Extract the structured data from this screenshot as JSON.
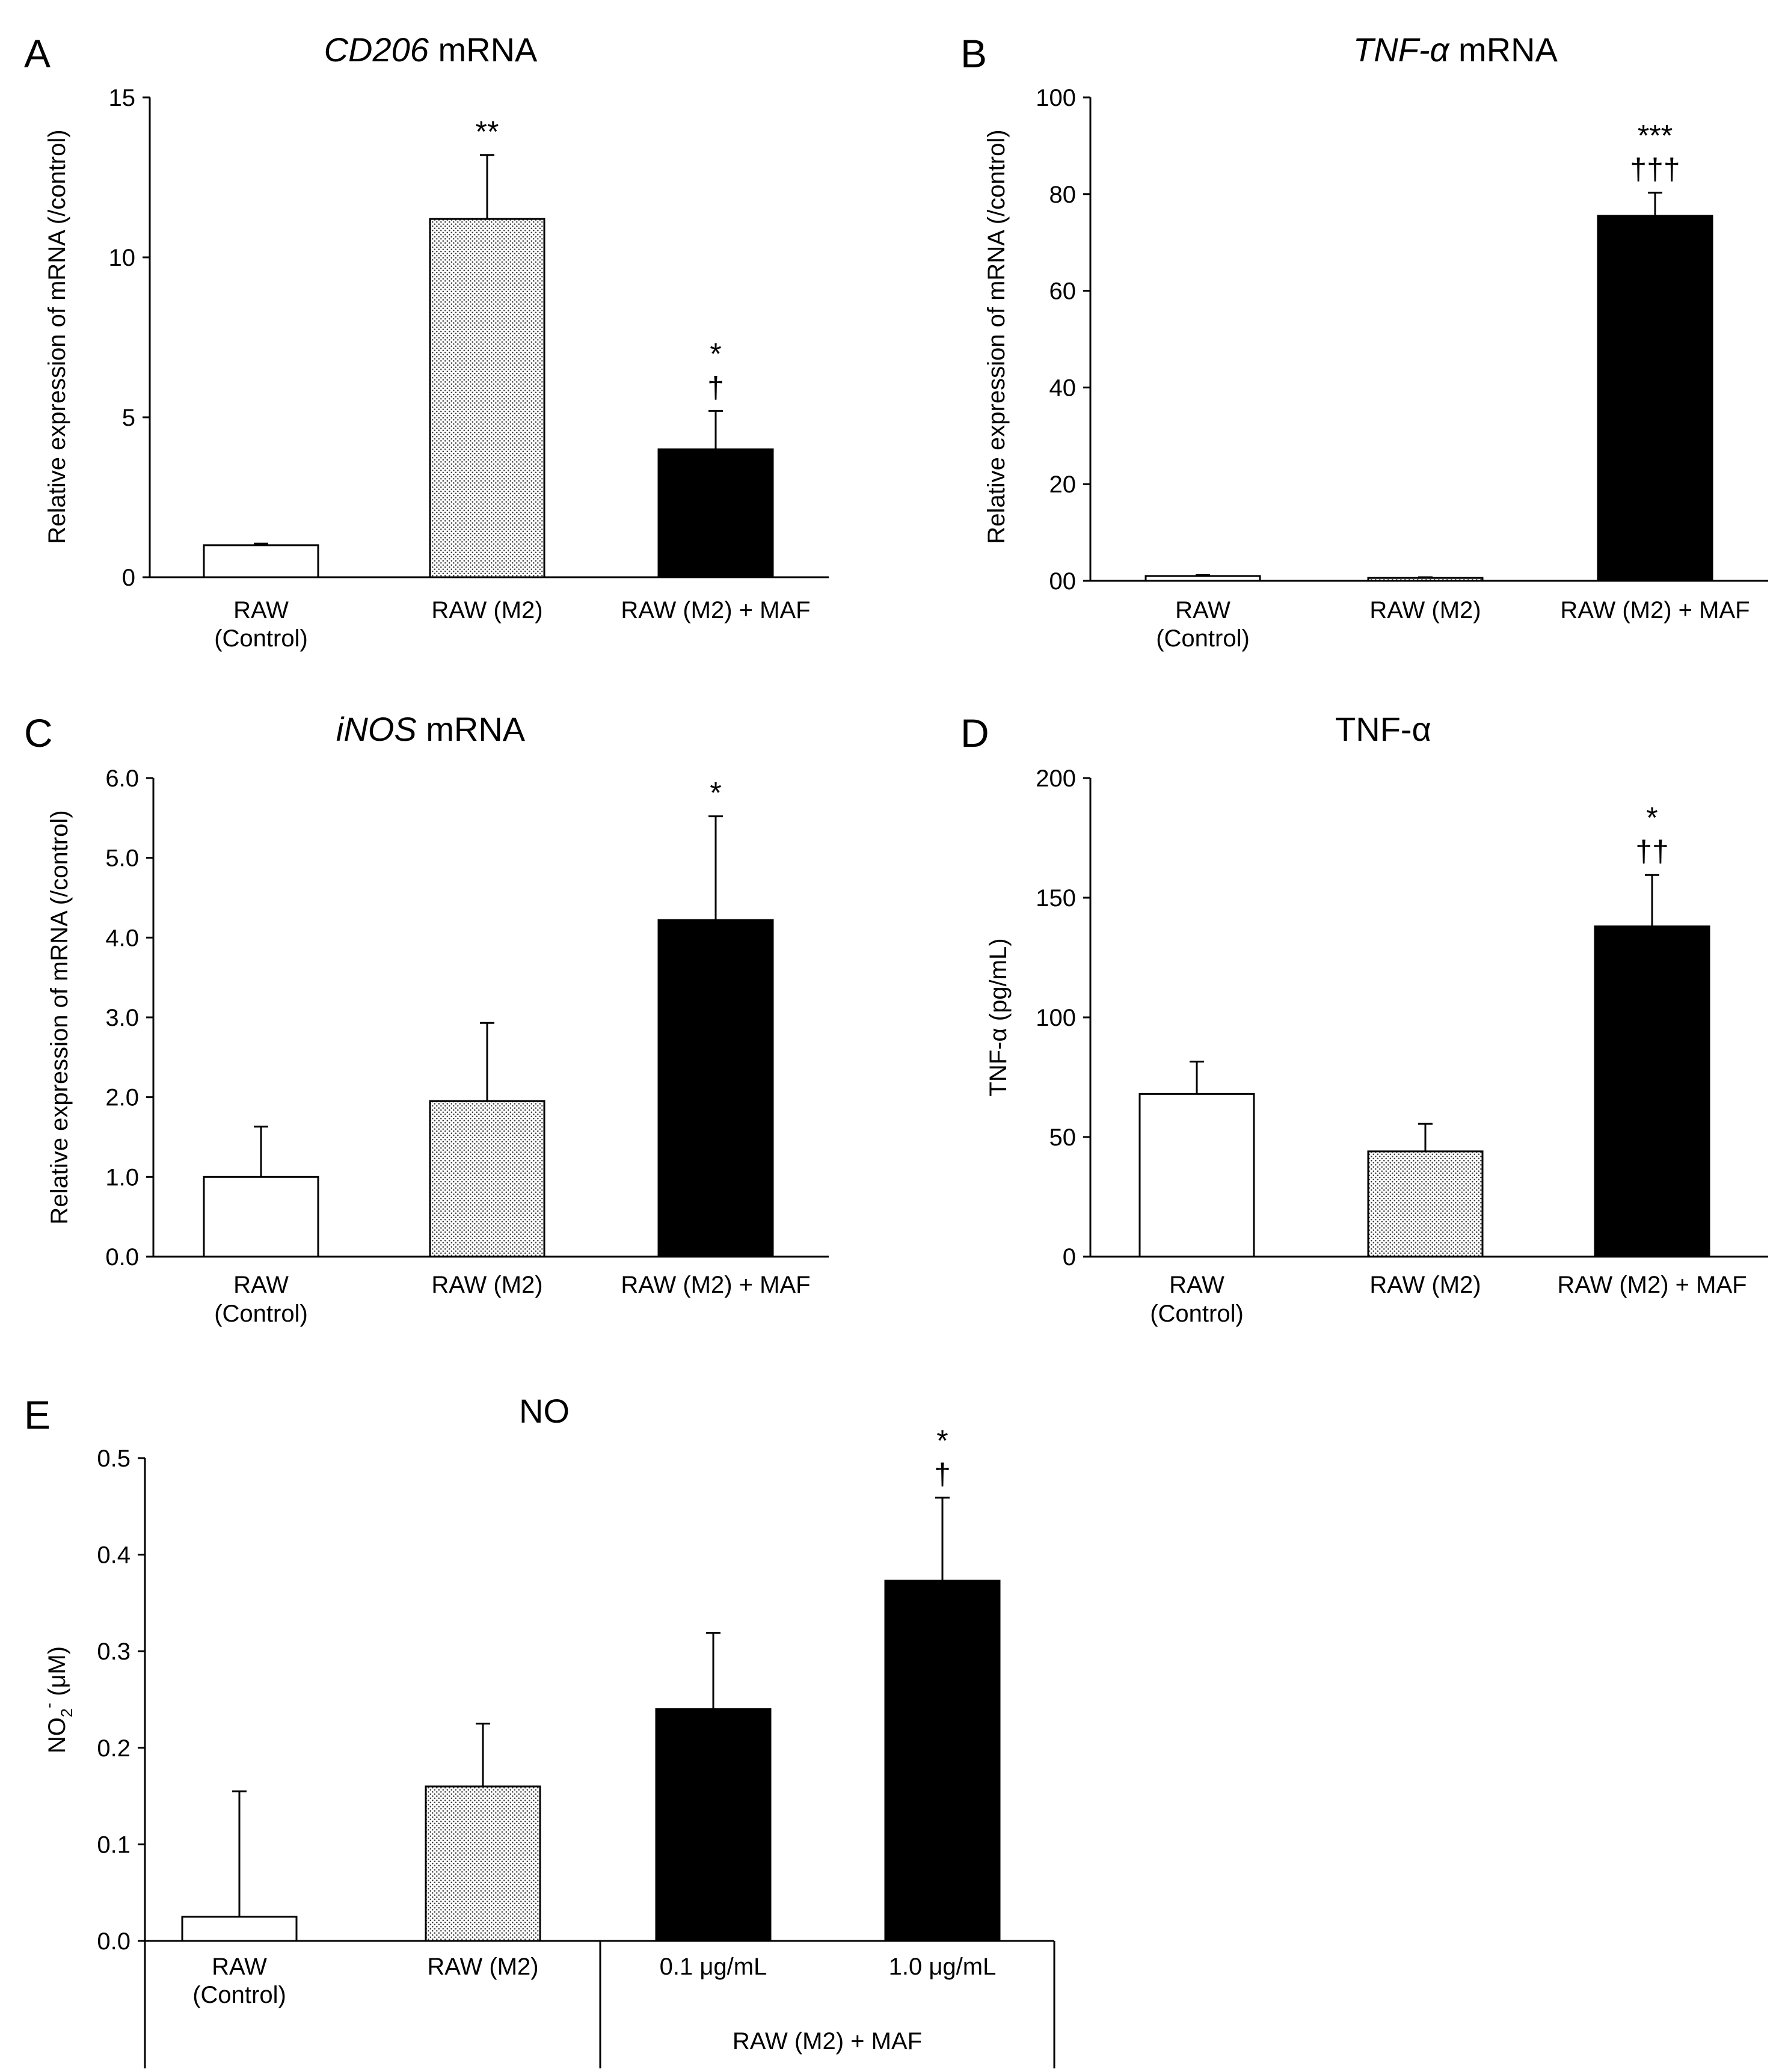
{
  "chart_data": [
    {
      "panel": "A",
      "type": "bar",
      "title_italic": "CD206",
      "title_rest": " mRNA",
      "ylabel": "Relative expression of mRNA (/control)",
      "ylim": [
        0,
        15
      ],
      "yticks": [
        "0",
        "5",
        "10",
        "15"
      ],
      "categories": [
        [
          "RAW",
          "(Control)"
        ],
        [
          "RAW (M2)"
        ],
        [
          "RAW (M2) + MAF"
        ]
      ],
      "values": [
        1.0,
        11.2,
        4.0
      ],
      "errors": [
        0.05,
        2.0,
        1.2
      ],
      "fills": [
        "white",
        "dots",
        "black"
      ],
      "annotations": [
        [],
        [
          "**"
        ],
        [
          "*",
          "†"
        ]
      ]
    },
    {
      "panel": "B",
      "type": "bar",
      "title_italic": "TNF-α",
      "title_rest": " mRNA",
      "ylabel": "Relative expression of mRNA (/control)",
      "ylim": [
        0,
        100
      ],
      "yticks": [
        "00",
        "20",
        "40",
        "60",
        "80",
        "100"
      ],
      "categories": [
        [
          "RAW",
          "(Control)"
        ],
        [
          "RAW (M2)"
        ],
        [
          "RAW (M2) + MAF"
        ]
      ],
      "values": [
        1.0,
        0.6,
        75.5
      ],
      "errors": [
        0.2,
        0.15,
        4.8
      ],
      "fills": [
        "white",
        "dots",
        "black"
      ],
      "annotations": [
        [],
        [],
        [
          "***",
          "†††"
        ]
      ]
    },
    {
      "panel": "C",
      "type": "bar",
      "title_italic": "iNOS",
      "title_rest": " mRNA",
      "ylabel": "Relative expression of mRNA (/control)",
      "ylim": [
        0,
        6
      ],
      "yticks": [
        "0.0",
        "1.0",
        "2.0",
        "3.0",
        "4.0",
        "5.0",
        "6.0"
      ],
      "categories": [
        [
          "RAW",
          "(Control)"
        ],
        [
          "RAW (M2)"
        ],
        [
          "RAW (M2) + MAF"
        ]
      ],
      "values": [
        1.0,
        1.95,
        4.22
      ],
      "errors": [
        0.63,
        0.98,
        1.3
      ],
      "fills": [
        "white",
        "dots",
        "black"
      ],
      "annotations": [
        [],
        [],
        [
          "*"
        ]
      ]
    },
    {
      "panel": "D",
      "type": "bar",
      "title_italic": "",
      "title_rest": "TNF-α",
      "ylabel": "TNF-α (pg/mL)",
      "ylim": [
        0,
        200
      ],
      "yticks": [
        "0",
        "50",
        "100",
        "150",
        "200"
      ],
      "categories": [
        [
          "RAW",
          "(Control)"
        ],
        [
          "RAW (M2)"
        ],
        [
          "RAW (M2) + MAF"
        ]
      ],
      "values": [
        68,
        44,
        138
      ],
      "errors": [
        13.5,
        11.5,
        21.5
      ],
      "fills": [
        "white",
        "dots",
        "black"
      ],
      "annotations": [
        [],
        [],
        [
          "*",
          "††"
        ]
      ]
    },
    {
      "panel": "E",
      "type": "bar",
      "title_italic": "",
      "title_rest": "NO",
      "ylabel_main": "NO",
      "ylabel_sub": "2",
      "ylabel_sup": "-",
      "ylabel_unit": " (μM)",
      "ylim": [
        0,
        0.5
      ],
      "yticks": [
        "0.0",
        "0.1",
        "0.2",
        "0.3",
        "0.4",
        "0.5"
      ],
      "categories": [
        [
          "RAW",
          "(Control)"
        ],
        [
          "RAW (M2)"
        ],
        [
          "0.1 μg/mL"
        ],
        [
          "1.0 μg/mL"
        ]
      ],
      "group_label": "RAW (M2) + MAF",
      "values": [
        0.025,
        0.16,
        0.24,
        0.373
      ],
      "errors": [
        0.13,
        0.065,
        0.079,
        0.086
      ],
      "fills": [
        "white",
        "dots",
        "black",
        "black"
      ],
      "annotations": [
        [],
        [],
        [],
        [
          "*",
          "†"
        ]
      ]
    }
  ]
}
